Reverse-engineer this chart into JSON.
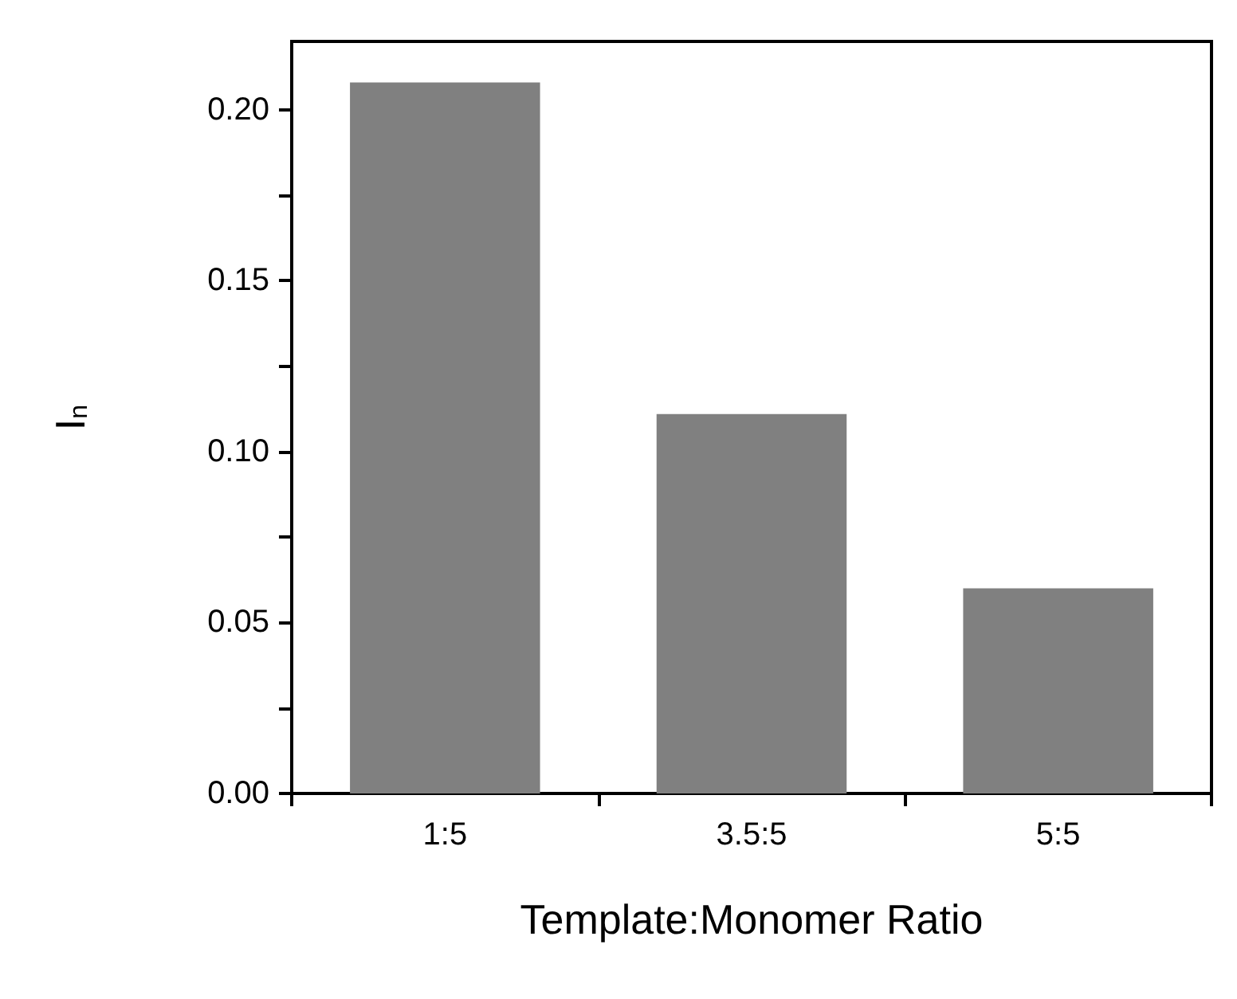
{
  "chart_data": {
    "type": "bar",
    "xlabel": "Template:Monomer Ratio",
    "ylabel": "I$_{n}$",
    "categories": [
      "1:5",
      "3.5:5",
      "5:5"
    ],
    "values": [
      0.208,
      0.111,
      0.06
    ],
    "color": "#808080",
    "ylim": [
      0,
      0.22
    ],
    "yticks": [
      {
        "value": 0,
        "label": "0.00"
      },
      {
        "value": 0.025,
        "label": null
      },
      {
        "value": 0.05,
        "label": "0.05"
      },
      {
        "value": 0.075,
        "label": null
      },
      {
        "value": 0.1,
        "label": "0.10"
      },
      {
        "value": 0.125,
        "label": null
      },
      {
        "value": 0.15,
        "label": "0.15"
      },
      {
        "value": 0.175,
        "label": null
      },
      {
        "value": 0.2,
        "label": "0.20"
      }
    ],
    "grid": false
  }
}
